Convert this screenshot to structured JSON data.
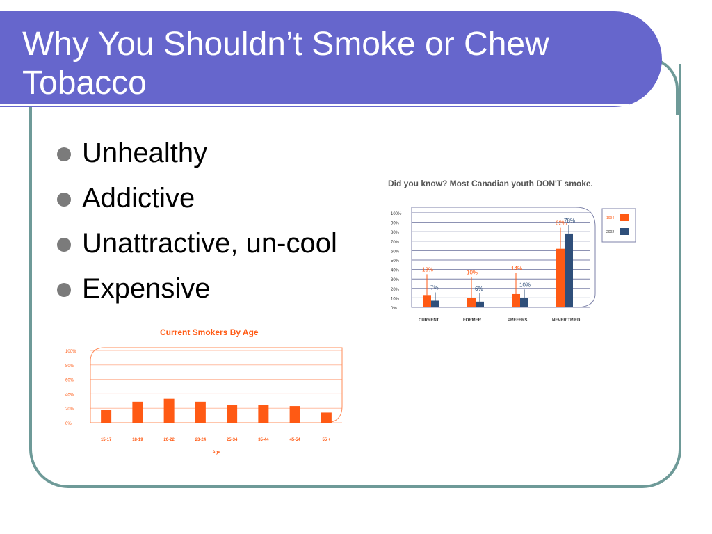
{
  "slide": {
    "title": "Why You Shouldn’t Smoke or Chew Tobacco",
    "bullets": [
      "Unhealthy",
      "Addictive",
      "Unattractive, un-cool",
      "Expensive"
    ]
  },
  "colors": {
    "title_bar": "#6666cc",
    "frame": "#6e9a98",
    "bar_1994": "#ff5a14",
    "bar_2002": "#2f4f7a",
    "bar_age": "#ff5a14"
  },
  "chart_data": [
    {
      "type": "bar",
      "title": "Did you know? Most Canadian youth DON'T smoke.",
      "categories": [
        "CURRENT",
        "FORMER",
        "PREFERS",
        "NEVER TRIED"
      ],
      "series": [
        {
          "name": "1994",
          "values": [
            13,
            10,
            14,
            62
          ],
          "labels": [
            "13%",
            "10%",
            "14%",
            "62%"
          ]
        },
        {
          "name": "2002",
          "values": [
            7,
            6,
            10,
            78
          ],
          "labels": [
            "7%",
            "6%",
            "10%",
            "78%"
          ]
        }
      ],
      "yticks": [
        "100%",
        "90%",
        "80%",
        "70%",
        "60%",
        "50%",
        "40%",
        "30%",
        "20%",
        "10%",
        "0%"
      ],
      "ylim": [
        0,
        100
      ],
      "grid": true,
      "legend": "right"
    },
    {
      "type": "bar",
      "title": "Current Smokers By Age",
      "xlabel": "Age",
      "categories": [
        "15-17",
        "18-19",
        "20-22",
        "23-24",
        "25-34",
        "35-44",
        "45-54",
        "55 +"
      ],
      "values": [
        18,
        29,
        33,
        29,
        25,
        25,
        23,
        14
      ],
      "yticks": [
        "100%",
        "80%",
        "60%",
        "40%",
        "20%",
        "0%"
      ],
      "ylim": [
        0,
        100
      ],
      "grid": true
    }
  ]
}
